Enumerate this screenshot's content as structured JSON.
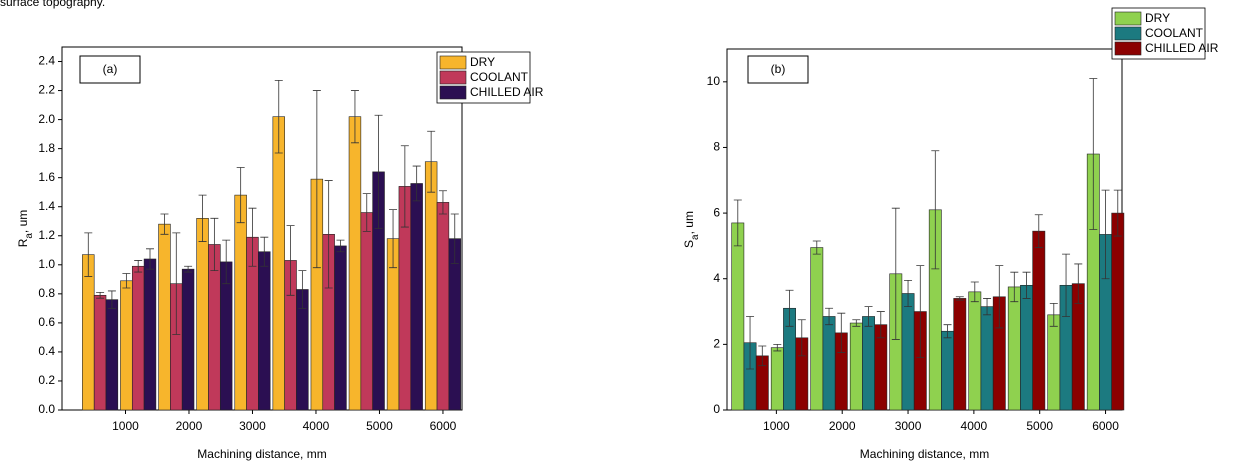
{
  "header": {
    "text": "surface topography."
  },
  "chart_data": [
    {
      "type": "bar",
      "panel": "(a)",
      "x_label": "Machining distance, mm",
      "y_label": [
        "R",
        "a",
        ", um"
      ],
      "x": [
        600,
        1200,
        1800,
        2400,
        3000,
        3600,
        4200,
        4800,
        5400,
        6000
      ],
      "xlim": [
        0,
        6300
      ],
      "xticks": [
        1000,
        2000,
        3000,
        4000,
        5000,
        6000
      ],
      "ylim": [
        0,
        2.5
      ],
      "yticks": [
        {
          "value": 0,
          "label": "0.0"
        },
        0.2,
        0.4,
        0.6,
        0.8,
        {
          "value": 1,
          "label": "1.0"
        },
        1.2,
        1.4,
        1.6,
        1.8,
        {
          "value": 2,
          "label": "2.0"
        },
        2.2,
        2.4
      ],
      "legend": "top-right",
      "series": [
        {
          "name": "DRY",
          "color": "#f7b52c",
          "values": [
            1.07,
            0.89,
            1.28,
            1.32,
            1.48,
            2.02,
            1.59,
            2.02,
            1.18,
            1.71
          ],
          "errors": [
            0.15,
            0.05,
            0.07,
            0.16,
            0.19,
            0.25,
            0.61,
            0.18,
            0.2,
            0.21
          ]
        },
        {
          "name": "COOLANT",
          "color": "#c0395a",
          "values": [
            0.79,
            0.99,
            0.87,
            1.14,
            1.19,
            1.03,
            1.21,
            1.36,
            1.54,
            1.43
          ],
          "errors": [
            0.02,
            0.04,
            0.35,
            0.18,
            0.2,
            0.24,
            0.37,
            0.13,
            0.28,
            0.08
          ]
        },
        {
          "name": "CHILLED AIR",
          "color": "#2b0f52",
          "values": [
            0.76,
            1.04,
            0.97,
            1.02,
            1.09,
            0.83,
            1.13,
            1.64,
            1.56,
            1.18
          ],
          "errors": [
            0.06,
            0.07,
            0.02,
            0.15,
            0.1,
            0.13,
            0.04,
            0.39,
            0.12,
            0.17
          ]
        }
      ]
    },
    {
      "type": "bar",
      "panel": "(b)",
      "x_label": "Machining distance, mm",
      "y_label": [
        "S",
        "a",
        ", um"
      ],
      "x": [
        600,
        1200,
        1800,
        2400,
        3000,
        3600,
        4200,
        4800,
        5400,
        6000
      ],
      "xlim": [
        250,
        6250
      ],
      "xticks": [
        1000,
        2000,
        3000,
        4000,
        5000,
        6000
      ],
      "ylim": [
        0,
        11
      ],
      "yticks": [
        0,
        2,
        4,
        6,
        8,
        10
      ],
      "legend": "top-right",
      "series": [
        {
          "name": "DRY",
          "color": "#8fd14f",
          "values": [
            5.7,
            1.9,
            4.95,
            2.65,
            4.15,
            6.1,
            3.6,
            3.75,
            2.9,
            7.8
          ],
          "errors": [
            0.7,
            0.1,
            0.2,
            0.1,
            2.0,
            1.8,
            0.3,
            0.45,
            0.35,
            2.3
          ]
        },
        {
          "name": "COOLANT",
          "color": "#1c7a80",
          "values": [
            2.05,
            3.1,
            2.85,
            2.85,
            3.55,
            2.4,
            3.15,
            3.8,
            3.8,
            5.35
          ],
          "errors": [
            0.8,
            0.55,
            0.25,
            0.3,
            0.4,
            0.2,
            0.25,
            0.4,
            0.95,
            1.35
          ]
        },
        {
          "name": "CHILLED AIR",
          "color": "#8b0000",
          "values": [
            1.65,
            2.2,
            2.35,
            2.6,
            3.0,
            3.4,
            3.45,
            5.45,
            3.85,
            6.0
          ],
          "errors": [
            0.3,
            0.55,
            0.6,
            0.4,
            1.4,
            0.05,
            0.95,
            0.5,
            0.6,
            0.7
          ]
        }
      ]
    }
  ]
}
